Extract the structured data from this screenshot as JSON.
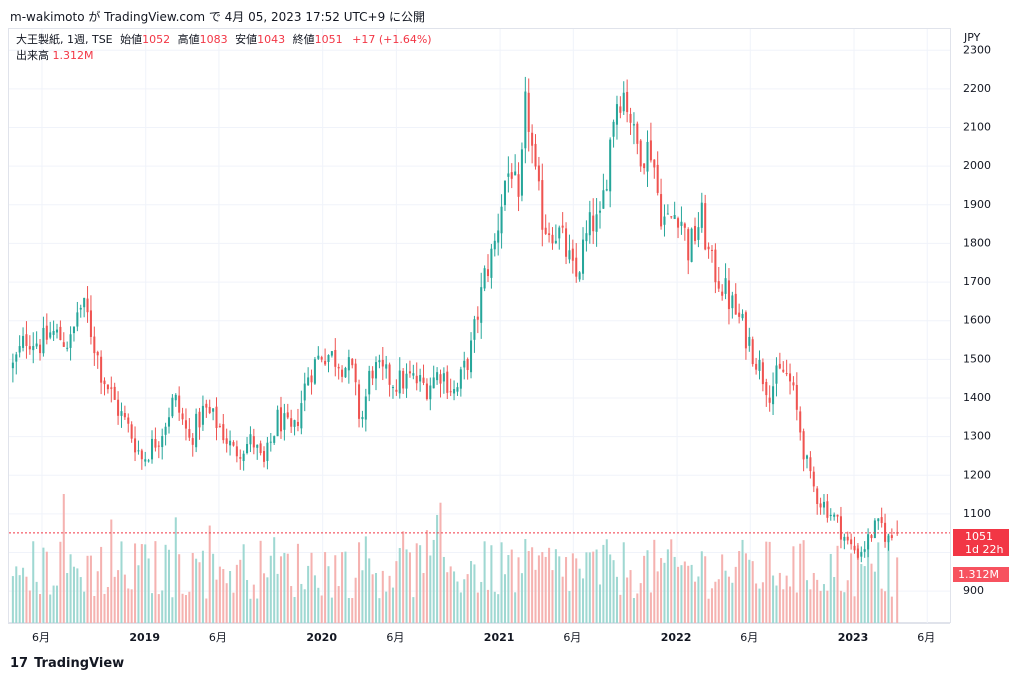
{
  "header": {
    "credit": "m-wakimoto が TradingView.com で 4月 05, 2023 17:52 UTC+9 に公開"
  },
  "legend": {
    "symbol_line": "大王製紙, 1週, TSE",
    "open_label": "始値",
    "open_value": "1052",
    "high_label": "高値",
    "high_value": "1083",
    "low_label": "安値",
    "low_value": "1043",
    "close_label": "終値",
    "close_value": "1051",
    "change": "+17 (+1.64%)",
    "volume_label": "出来高",
    "volume_value": "1.312M"
  },
  "currency": "JPY",
  "badges": {
    "last_price": "1051",
    "countdown": "1d 22h",
    "last_volume": "1.312M"
  },
  "footer": {
    "brand": "TradingView",
    "logo": "17"
  },
  "colors": {
    "up": "#26a69a",
    "down": "#ef5350",
    "vol_up": "#9fd8d2",
    "vol_down": "#f5b2b0",
    "grid": "#f0f3fa"
  },
  "chart_data": {
    "type": "candlestick",
    "interval": "1W",
    "y_axis": {
      "ticks": [
        2300,
        2200,
        2100,
        2000,
        1900,
        1800,
        1700,
        1600,
        1500,
        1400,
        1300,
        1200,
        1100,
        1000,
        900
      ],
      "range": [
        815,
        2355
      ]
    },
    "x_axis": {
      "ticks": [
        {
          "label": "6月",
          "date": "2018-06",
          "bold": false
        },
        {
          "label": "2019",
          "date": "2019-01",
          "bold": true
        },
        {
          "label": "6月",
          "date": "2019-06",
          "bold": false
        },
        {
          "label": "2020",
          "date": "2020-01",
          "bold": true
        },
        {
          "label": "6月",
          "date": "2020-06",
          "bold": false
        },
        {
          "label": "2021",
          "date": "2021-01",
          "bold": true
        },
        {
          "label": "6月",
          "date": "2021-06",
          "bold": false
        },
        {
          "label": "2022",
          "date": "2022-01",
          "bold": true
        },
        {
          "label": "6月",
          "date": "2022-06",
          "bold": false
        },
        {
          "label": "2023",
          "date": "2023-01",
          "bold": true
        },
        {
          "label": "6月",
          "date": "2023-06",
          "bold": false
        }
      ]
    },
    "close_anchors": [
      [
        "2018-04-02",
        1480
      ],
      [
        "2018-05-01",
        1560
      ],
      [
        "2018-06-01",
        1540
      ],
      [
        "2018-06-20",
        1570
      ],
      [
        "2018-08-01",
        1540
      ],
      [
        "2018-08-15",
        1640
      ],
      [
        "2018-09-01",
        1620
      ],
      [
        "2018-10-01",
        1470
      ],
      [
        "2018-11-01",
        1380
      ],
      [
        "2018-12-01",
        1310
      ],
      [
        "2018-12-25",
        1240
      ],
      [
        "2019-02-01",
        1310
      ],
      [
        "2019-03-01",
        1400
      ],
      [
        "2019-04-01",
        1290
      ],
      [
        "2019-05-01",
        1370
      ],
      [
        "2019-06-01",
        1330
      ],
      [
        "2019-07-01",
        1260
      ],
      [
        "2019-08-10",
        1290
      ],
      [
        "2019-09-01",
        1220
      ],
      [
        "2019-10-01",
        1350
      ],
      [
        "2019-11-01",
        1300
      ],
      [
        "2019-12-01",
        1460
      ],
      [
        "2020-01-01",
        1520
      ],
      [
        "2020-02-01",
        1500
      ],
      [
        "2020-03-01",
        1470
      ],
      [
        "2020-03-20",
        1330
      ],
      [
        "2020-04-10",
        1480
      ],
      [
        "2020-05-01",
        1460
      ],
      [
        "2020-06-01",
        1440
      ],
      [
        "2020-07-01",
        1450
      ],
      [
        "2020-08-01",
        1430
      ],
      [
        "2020-09-01",
        1470
      ],
      [
        "2020-10-01",
        1410
      ],
      [
        "2020-11-01",
        1520
      ],
      [
        "2020-12-01",
        1720
      ],
      [
        "2020-12-20",
        1790
      ],
      [
        "2021-01-10",
        1960
      ],
      [
        "2021-01-25",
        2000
      ],
      [
        "2021-02-10",
        1860
      ],
      [
        "2021-02-20",
        2150
      ],
      [
        "2021-03-01",
        2120
      ],
      [
        "2021-03-15",
        1960
      ],
      [
        "2021-04-01",
        1850
      ],
      [
        "2021-05-01",
        1830
      ],
      [
        "2021-05-20",
        1770
      ],
      [
        "2021-06-05",
        1700
      ],
      [
        "2021-06-20",
        1780
      ],
      [
        "2021-07-10",
        1860
      ],
      [
        "2021-07-25",
        1840
      ],
      [
        "2021-08-10",
        2000
      ],
      [
        "2021-08-25",
        2160
      ],
      [
        "2021-09-10",
        2200
      ],
      [
        "2021-09-25",
        2150
      ],
      [
        "2021-10-05",
        2060
      ],
      [
        "2021-10-25",
        2040
      ],
      [
        "2021-11-10",
        2050
      ],
      [
        "2021-11-25",
        1900
      ],
      [
        "2021-12-10",
        1850
      ],
      [
        "2022-01-05",
        1890
      ],
      [
        "2022-01-25",
        1780
      ],
      [
        "2022-02-20",
        1870
      ],
      [
        "2022-03-10",
        1750
      ],
      [
        "2022-04-01",
        1700
      ],
      [
        "2022-04-20",
        1650
      ],
      [
        "2022-05-10",
        1600
      ],
      [
        "2022-06-01",
        1540
      ],
      [
        "2022-06-20",
        1480
      ],
      [
        "2022-07-10",
        1420
      ],
      [
        "2022-07-25",
        1450
      ],
      [
        "2022-08-10",
        1470
      ],
      [
        "2022-08-25",
        1430
      ],
      [
        "2022-09-10",
        1330
      ],
      [
        "2022-10-01",
        1190
      ],
      [
        "2022-10-20",
        1140
      ],
      [
        "2022-11-10",
        1110
      ],
      [
        "2022-12-01",
        1070
      ],
      [
        "2022-12-20",
        1020
      ],
      [
        "2023-01-10",
        1000
      ],
      [
        "2023-01-25",
        1020
      ],
      [
        "2023-02-10",
        1060
      ],
      [
        "2023-03-01",
        1070
      ],
      [
        "2023-03-10",
        1030
      ],
      [
        "2023-03-31",
        1051
      ]
    ],
    "last": {
      "open": 1052,
      "high": 1083,
      "low": 1043,
      "close": 1051,
      "change": 17,
      "change_pct": 1.64,
      "volume": "1.312M"
    }
  }
}
